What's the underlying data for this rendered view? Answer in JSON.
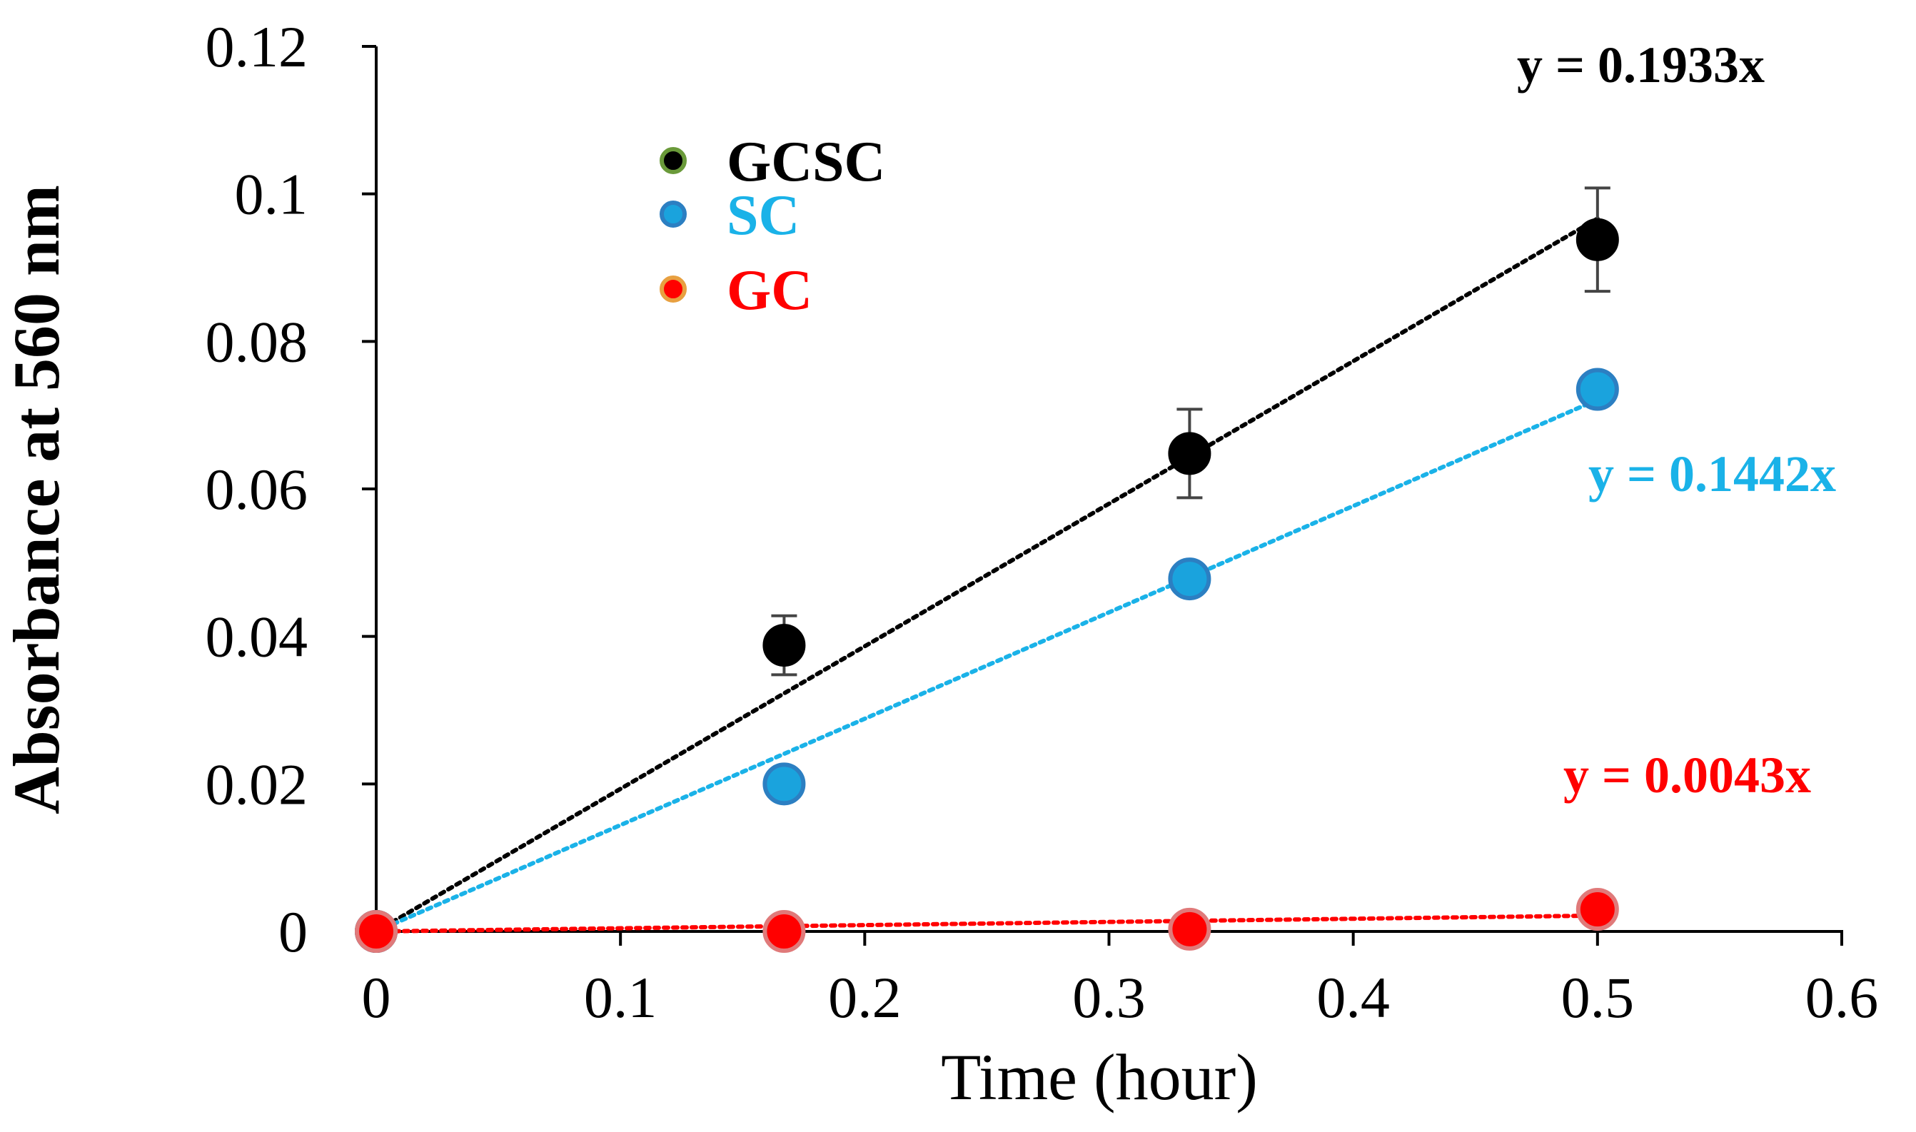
{
  "chart_data": {
    "type": "scatter",
    "title": "",
    "xlabel": "Time (hour)",
    "ylabel": "Absorbance at 560 nm",
    "xlim": [
      0,
      0.6
    ],
    "ylim": [
      0,
      0.12
    ],
    "xticks": [
      "0",
      "0.1",
      "0.2",
      "0.3",
      "0.4",
      "0.5",
      "0.6"
    ],
    "yticks": [
      "0",
      "0.02",
      "0.04",
      "0.06",
      "0.08",
      "0.1",
      "0.12"
    ],
    "grid": false,
    "legend_position": "top-left",
    "series": [
      {
        "name": "GCSC",
        "color": "#000000",
        "edge_color": "#000000",
        "legend_edge": "#6a9a3a",
        "x": [
          0,
          0.167,
          0.333,
          0.5
        ],
        "y": [
          0,
          0.0388,
          0.0648,
          0.0938
        ],
        "error": [
          0,
          0.004,
          0.006,
          0.007
        ],
        "trendline": {
          "slope": 0.1933,
          "label": "y = 0.1933x"
        }
      },
      {
        "name": "SC",
        "color": "#1aa3dd",
        "edge_color": "#2c7fc2",
        "legend_edge": "#2c7fc2",
        "x": [
          0,
          0.167,
          0.333,
          0.5
        ],
        "y": [
          0,
          0.02,
          0.0478,
          0.0735
        ],
        "error": [
          0,
          0,
          0,
          0
        ],
        "trendline": {
          "slope": 0.1442,
          "label": "y = 0.1442x"
        }
      },
      {
        "name": "GC",
        "color": "#ff0000",
        "edge_color": "#e07a7a",
        "legend_edge": "#e8a040",
        "x": [
          0,
          0.167,
          0.333,
          0.5
        ],
        "y": [
          0,
          0,
          0.0003,
          0.003
        ],
        "error": [
          0,
          0,
          0,
          0
        ],
        "trendline": {
          "slope": 0.0043,
          "label": "y = 0.0043x"
        }
      }
    ]
  },
  "colors": {
    "gcsc_equation": "#000000",
    "sc_equation": "#1ab2e8",
    "gc_equation": "#ff0000",
    "axis": "#000000"
  }
}
